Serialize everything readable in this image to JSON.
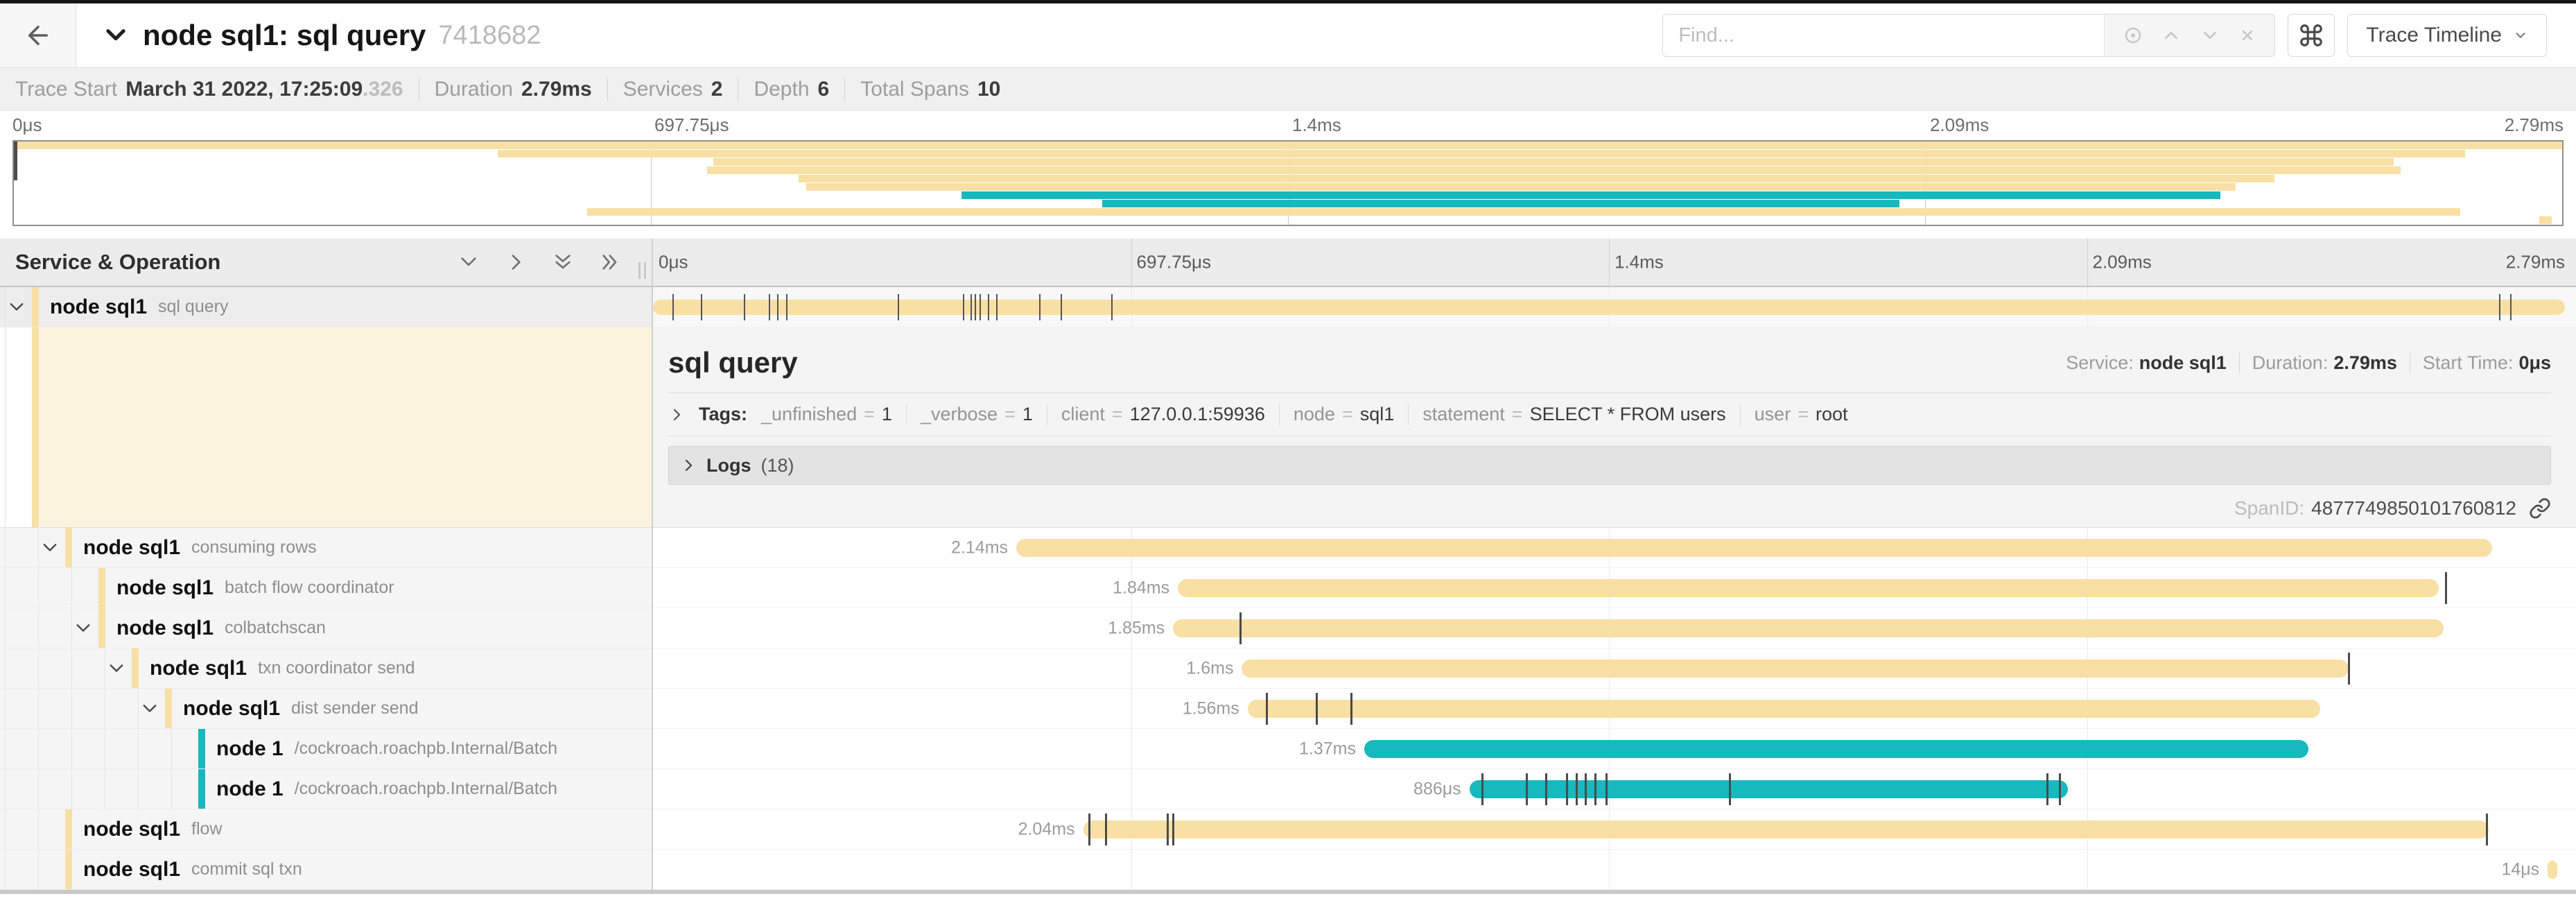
{
  "colors": {
    "tan": "#F8DFA4",
    "teal": "#17B8BE",
    "selected_tint": "#fcf3de"
  },
  "header": {
    "back_icon": "arrow-left",
    "title": "node sql1: sql query",
    "trace_id": "7418682",
    "find_placeholder": "Find...",
    "find_control_icons": [
      "locate-icon",
      "chevron-up-icon",
      "chevron-down-icon",
      "clear-icon"
    ],
    "keyboard_shortcut_icon": "command",
    "view_button_label": "Trace Timeline"
  },
  "info_bar": {
    "items": [
      {
        "label": "Trace Start",
        "value": "March 31 2022, 17:25:09",
        "suffix": ".326"
      },
      {
        "label": "Duration",
        "value": "2.79ms"
      },
      {
        "label": "Services",
        "value": "2"
      },
      {
        "label": "Depth",
        "value": "6"
      },
      {
        "label": "Total Spans",
        "value": "10"
      }
    ]
  },
  "timeline_ticks": [
    "0μs",
    "697.75μs",
    "1.4ms",
    "2.09ms",
    "2.79ms"
  ],
  "left_header": {
    "title": "Service & Operation",
    "icons": [
      "collapse-one-icon",
      "expand-one-icon",
      "collapse-all-icon",
      "expand-all-icon"
    ]
  },
  "detail": {
    "title": "sql query",
    "service_label": "Service:",
    "service": "node sql1",
    "duration_label": "Duration:",
    "duration": "2.79ms",
    "start_label": "Start Time:",
    "start": "0μs",
    "tags_label": "Tags:",
    "tags": [
      {
        "key": "_unfinished",
        "value": "1"
      },
      {
        "key": "_verbose",
        "value": "1"
      },
      {
        "key": "client",
        "value": "127.0.0.1:59936"
      },
      {
        "key": "node",
        "value": "sql1"
      },
      {
        "key": "statement",
        "value": "SELECT * FROM users"
      },
      {
        "key": "user",
        "value": "root"
      }
    ],
    "logs_label": "Logs",
    "logs_count": "(18)",
    "span_id_label": "SpanID:",
    "span_id": "4877749850101760812"
  },
  "spans": [
    {
      "service": "node sql1",
      "operation": "sql query",
      "depth": 0,
      "expandable": true,
      "color": "tan",
      "start": 0.0,
      "end": 1.0,
      "duration_label": "",
      "selected": true,
      "ticks": [
        0.0105,
        0.0254,
        0.0478,
        0.0609,
        0.0652,
        0.0699,
        0.1283,
        0.1623,
        0.1663,
        0.1685,
        0.171,
        0.1754,
        0.18,
        0.2025,
        0.2134,
        0.24,
        0.966,
        0.9718
      ]
    },
    {
      "service": "node sql1",
      "operation": "consuming rows",
      "depth": 1,
      "expandable": true,
      "color": "tan",
      "start": 0.19,
      "end": 0.962,
      "duration_label": "2.14ms",
      "ticks": []
    },
    {
      "service": "node sql1",
      "operation": "batch flow coordinator",
      "depth": 2,
      "expandable": false,
      "color": "tan",
      "start": 0.2745,
      "end": 0.934,
      "duration_label": "1.84ms",
      "ticks": [
        0.9377
      ]
    },
    {
      "service": "node sql1",
      "operation": "colbatchscan",
      "depth": 2,
      "expandable": true,
      "color": "tan",
      "start": 0.272,
      "end": 0.9366,
      "duration_label": "1.85ms",
      "ticks": [
        0.307
      ]
    },
    {
      "service": "node sql1",
      "operation": "txn coordinator send",
      "depth": 3,
      "expandable": true,
      "color": "tan",
      "start": 0.308,
      "end": 0.887,
      "duration_label": "1.6ms",
      "ticks": [
        0.8868
      ]
    },
    {
      "service": "node sql1",
      "operation": "dist sender send",
      "depth": 4,
      "expandable": true,
      "color": "tan",
      "start": 0.311,
      "end": 0.872,
      "duration_label": "1.56ms",
      "ticks": [
        0.321,
        0.347,
        0.365
      ]
    },
    {
      "service": "node 1",
      "operation": "/cockroach.roachpb.Internal/Batch",
      "depth": 5,
      "expandable": false,
      "color": "teal",
      "start": 0.372,
      "end": 0.866,
      "duration_label": "1.37ms",
      "ticks": []
    },
    {
      "service": "node 1",
      "operation": "/cockroach.roachpb.Internal/Batch",
      "depth": 5,
      "expandable": false,
      "color": "teal",
      "start": 0.427,
      "end": 0.74,
      "duration_label": "886μs",
      "ticks": [
        0.4337,
        0.457,
        0.467,
        0.478,
        0.483,
        0.4877,
        0.4928,
        0.4986,
        0.563,
        0.729,
        0.7355
      ]
    },
    {
      "service": "node sql1",
      "operation": "flow",
      "depth": 1,
      "expandable": false,
      "color": "tan",
      "start": 0.225,
      "end": 0.96,
      "duration_label": "2.04ms",
      "ticks": [
        0.228,
        0.2366,
        0.269,
        0.272,
        0.959
      ]
    },
    {
      "service": "node sql1",
      "operation": "commit sql txn",
      "depth": 1,
      "expandable": false,
      "color": "tan",
      "start": 0.991,
      "end": 0.996,
      "duration_label": "14μs",
      "ticks": []
    }
  ]
}
